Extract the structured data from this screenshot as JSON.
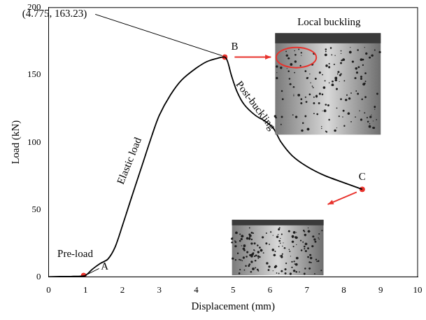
{
  "chart_data": {
    "type": "line",
    "x_label": "Displacement (mm)",
    "y_label": "Load (kN)",
    "x": [
      0,
      0.3,
      0.6,
      0.9,
      1.0,
      1.2,
      1.4,
      1.6,
      1.8,
      2.0,
      2.2,
      2.5,
      2.8,
      3.0,
      3.3,
      3.6,
      4.0,
      4.3,
      4.6,
      4.775,
      4.85,
      4.95,
      5.1,
      5.3,
      5.6,
      5.9,
      6.1,
      6.3,
      6.6,
      7.0,
      7.5,
      8.0,
      8.5
    ],
    "values": [
      0,
      0.2,
      0.3,
      0.5,
      1,
      6,
      10,
      13,
      22,
      38,
      55,
      80,
      105,
      120,
      135,
      146,
      155,
      160,
      162.5,
      163.23,
      160,
      150,
      138,
      128,
      120,
      115,
      110,
      100,
      90,
      82,
      75,
      70,
      65
    ],
    "color": "#000000",
    "xlim": [
      0,
      10
    ],
    "xticks": [
      0,
      1,
      2,
      3,
      4,
      5,
      6,
      7,
      8,
      9,
      10
    ],
    "ylim": [
      0,
      200
    ],
    "yticks": [
      0,
      50,
      100,
      150,
      200
    ],
    "grid": false,
    "points": {
      "labels": [
        "A",
        "B",
        "C"
      ],
      "x": [
        0.95,
        4.775,
        8.5
      ],
      "y": [
        1,
        163.23,
        65
      ],
      "color": "#e8322c"
    },
    "annotations": [
      "(4.775, 163.23)",
      "Pre-load",
      "Elastic load",
      "Post-buckling",
      "Local buckling"
    ]
  }
}
